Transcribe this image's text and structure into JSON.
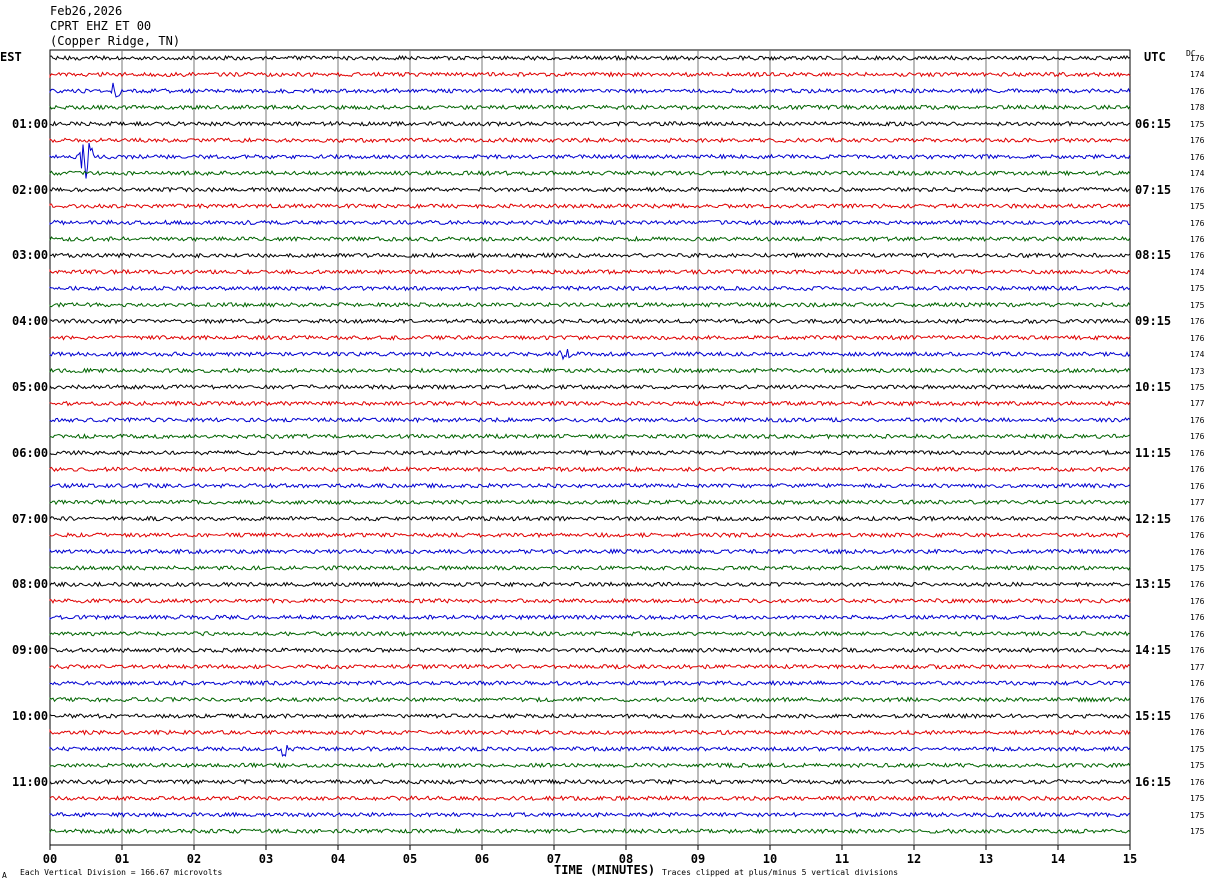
{
  "header": {
    "date": "Feb26,2026",
    "station": "CPRT EHZ ET 00",
    "location": "(Copper Ridge, TN)"
  },
  "left_axis": {
    "label": "EST"
  },
  "right_axis": {
    "label": "UTC",
    "dc_header": "DC"
  },
  "footer": {
    "scale_note": "Each Vertical Division =  166.67 microvolts",
    "clip_note": "Traces clipped at plus/minus 5 vertical divisions",
    "corner_mark": "A"
  },
  "chart_data": {
    "type": "line",
    "title": "",
    "xlabel": "TIME (MINUTES)",
    "xlim": [
      0,
      15
    ],
    "x_ticks": [
      "00",
      "01",
      "02",
      "03",
      "04",
      "05",
      "06",
      "07",
      "08",
      "09",
      "10",
      "11",
      "12",
      "13",
      "14",
      "15"
    ],
    "trace_minutes": 15,
    "trace_colors": [
      "#000000",
      "#e00000",
      "#0000d0",
      "#006400"
    ],
    "est_hour_labels": [
      "01:00",
      "02:00",
      "03:00",
      "04:00",
      "05:00",
      "06:00",
      "07:00",
      "08:00",
      "09:00",
      "10:00",
      "11:00"
    ],
    "utc_hour_labels": [
      "06:15",
      "07:15",
      "08:15",
      "09:15",
      "10:15",
      "11:15",
      "12:15",
      "13:15",
      "14:15",
      "15:15",
      "16:15"
    ],
    "dc_offsets": [
      176,
      174,
      176,
      178,
      175,
      176,
      176,
      174,
      176,
      175,
      176,
      176,
      176,
      174,
      175,
      175,
      176,
      176,
      174,
      173,
      175,
      177,
      176,
      176,
      176,
      176,
      176,
      177,
      176,
      176,
      176,
      175,
      176,
      176,
      176,
      176,
      176,
      177,
      176,
      176,
      176,
      176,
      175,
      175,
      176,
      175,
      175,
      175
    ],
    "events": [
      {
        "trace": 6,
        "minute": 0.5,
        "amplitude": "large"
      },
      {
        "trace": 2,
        "minute": 0.9,
        "amplitude": "medium"
      },
      {
        "trace": 18,
        "minute": 7.15,
        "amplitude": "medium"
      },
      {
        "trace": 42,
        "minute": 3.25,
        "amplitude": "medium"
      }
    ]
  }
}
